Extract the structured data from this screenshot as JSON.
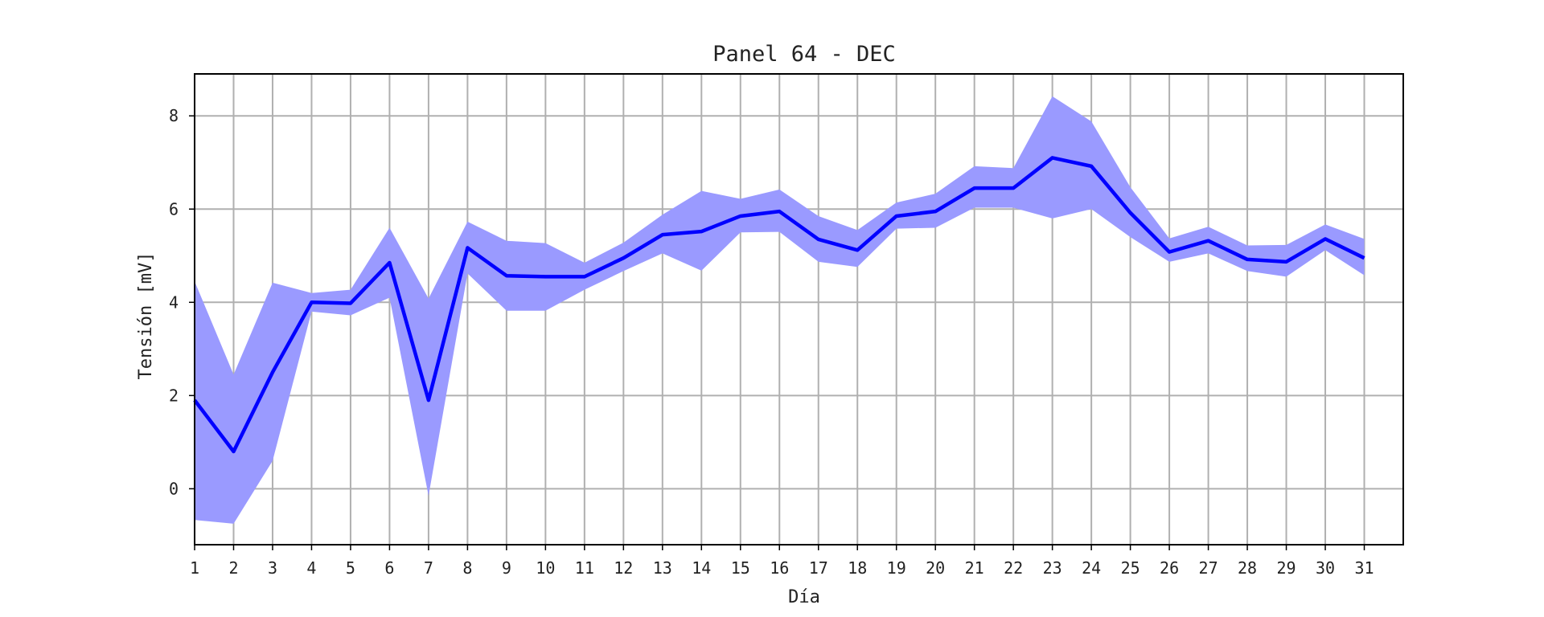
{
  "chart_data": {
    "type": "line",
    "title": "Panel 64 - DEC",
    "xlabel": "Día",
    "ylabel": "Tensión [mV]",
    "x": [
      1,
      2,
      3,
      4,
      5,
      6,
      7,
      8,
      9,
      10,
      11,
      12,
      13,
      14,
      15,
      16,
      17,
      18,
      19,
      20,
      21,
      22,
      23,
      24,
      25,
      26,
      27,
      28,
      29,
      30,
      31
    ],
    "xticks": [
      "1",
      "2",
      "3",
      "4",
      "5",
      "6",
      "7",
      "8",
      "9",
      "10",
      "11",
      "12",
      "13",
      "14",
      "15",
      "16",
      "17",
      "18",
      "19",
      "20",
      "21",
      "22",
      "23",
      "24",
      "25",
      "26",
      "27",
      "28",
      "29",
      "30",
      "31"
    ],
    "xlim": [
      1,
      32
    ],
    "ylim": [
      -1.2,
      8.9
    ],
    "yticks": [
      "0",
      "2",
      "4",
      "6",
      "8"
    ],
    "grid": true,
    "series": [
      {
        "values": [
          1.9,
          0.8,
          2.5,
          4.0,
          3.98,
          4.85,
          1.9,
          5.17,
          4.57,
          4.55,
          4.55,
          4.95,
          5.45,
          5.52,
          5.85,
          5.95,
          5.35,
          5.12,
          5.85,
          5.95,
          6.45,
          6.45,
          7.1,
          6.92,
          5.92,
          5.08,
          5.32,
          4.92,
          4.87,
          5.36,
          4.95
        ],
        "color": "#0000ff"
      }
    ],
    "band": {
      "upper": [
        4.45,
        2.45,
        4.42,
        4.2,
        4.27,
        5.6,
        4.08,
        5.73,
        5.32,
        5.27,
        4.85,
        5.28,
        5.88,
        6.39,
        6.22,
        6.42,
        5.85,
        5.55,
        6.14,
        6.33,
        6.92,
        6.88,
        8.42,
        7.88,
        6.47,
        5.37,
        5.62,
        5.22,
        5.23,
        5.67,
        5.36
      ],
      "lower": [
        -0.67,
        -0.75,
        0.6,
        3.8,
        3.72,
        4.1,
        -0.15,
        4.62,
        3.82,
        3.82,
        4.27,
        4.67,
        5.05,
        4.68,
        5.5,
        5.51,
        4.87,
        4.76,
        5.58,
        5.6,
        6.03,
        6.03,
        5.8,
        6.0,
        5.4,
        4.87,
        5.05,
        4.67,
        4.55,
        5.12,
        4.58
      ],
      "color": "#9a9aff"
    }
  }
}
